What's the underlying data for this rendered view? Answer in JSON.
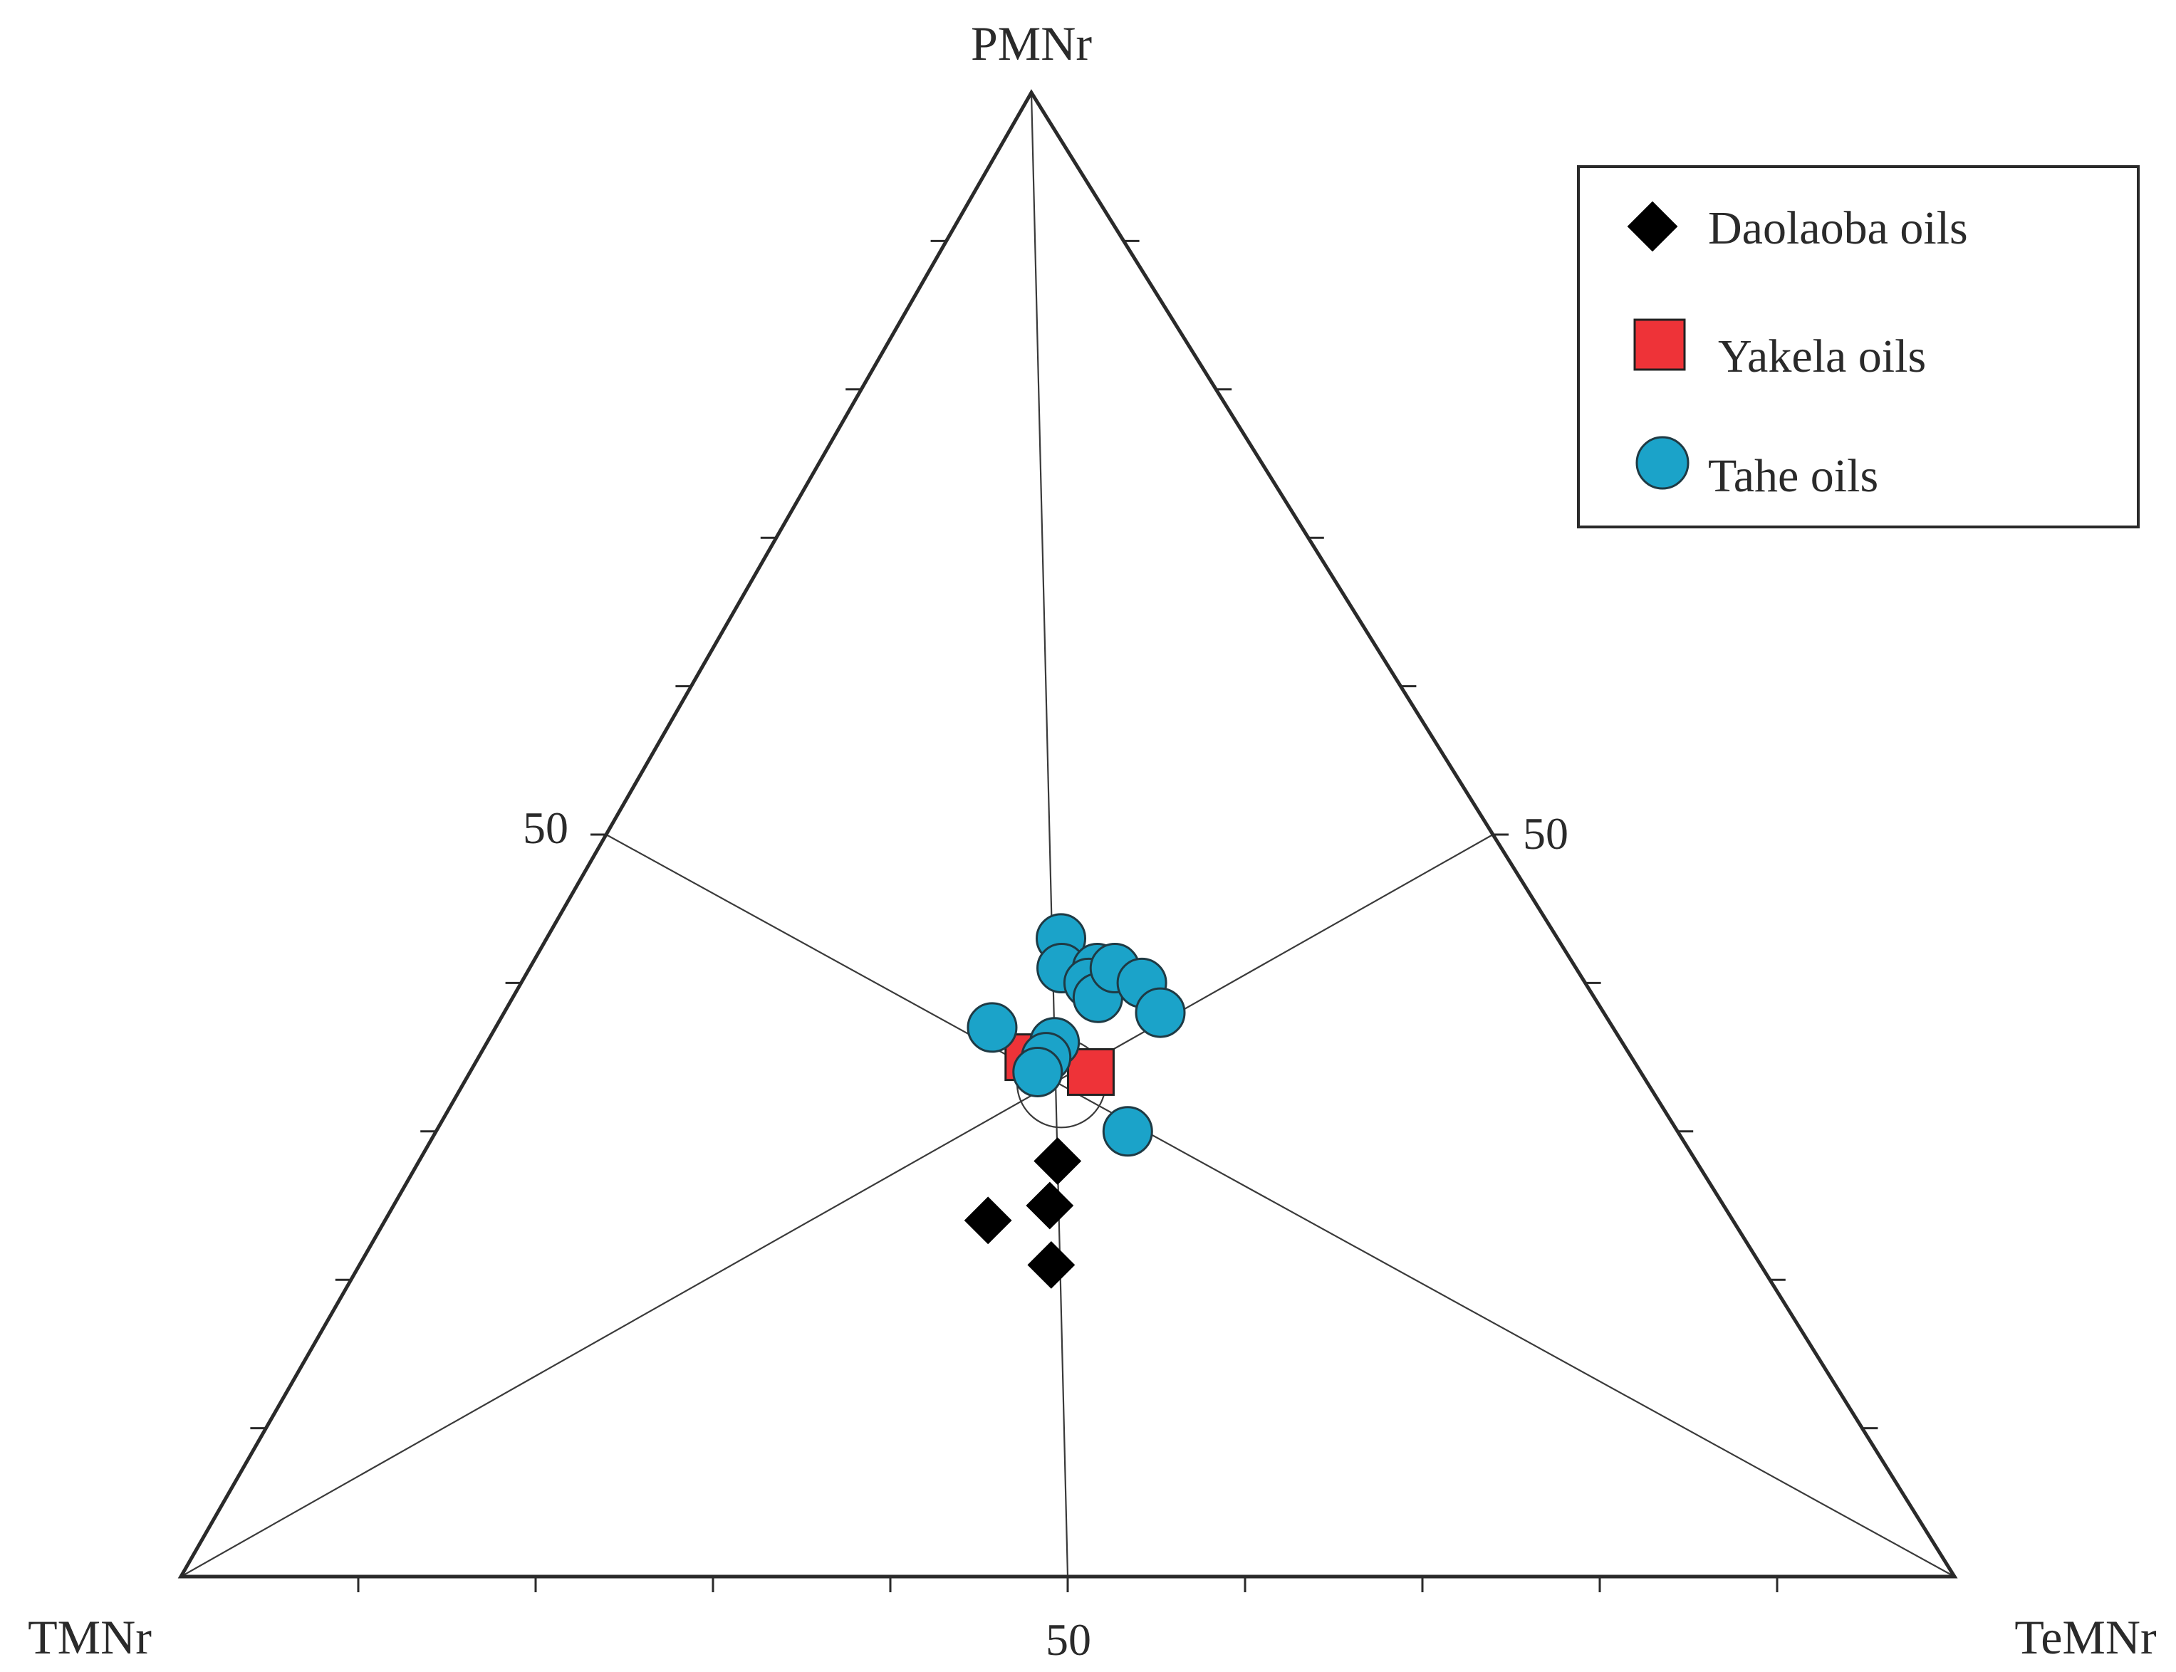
{
  "chart_data": {
    "type": "scatter",
    "subtype": "ternary",
    "axes": {
      "top": "PMNr",
      "left": "TMNr",
      "right": "TeMNr"
    },
    "tick_labels": {
      "left_edge": "50",
      "right_edge": "50",
      "bottom_edge": "50"
    },
    "grid": false,
    "median_lines": true,
    "ticks_per_edge": 10,
    "legend_position": "top-right",
    "series": [
      {
        "name": "Daolaoba oils",
        "marker": "diamond",
        "color": "#000000",
        "points": [
          {
            "PMNr": 28,
            "TMNr": 36,
            "TeMNr": 36
          },
          {
            "PMNr": 25,
            "TMNr": 38,
            "TeMNr": 37
          },
          {
            "PMNr": 24,
            "TMNr": 42,
            "TeMNr": 34
          },
          {
            "PMNr": 21,
            "TMNr": 40,
            "TeMNr": 39
          }
        ]
      },
      {
        "name": "Yakela oils",
        "marker": "square",
        "color": "#ee3338",
        "points": [
          {
            "PMNr": 35,
            "TMNr": 34,
            "TeMNr": 31
          },
          {
            "PMNr": 34,
            "TMNr": 31,
            "TeMNr": 35
          }
        ]
      },
      {
        "name": "Tahe oils",
        "marker": "circle",
        "color": "#1ba3c9",
        "points": [
          {
            "PMNr": 43,
            "TMNr": 28,
            "TeMNr": 29
          },
          {
            "PMNr": 41,
            "TMNr": 29,
            "TeMNr": 30
          },
          {
            "PMNr": 41,
            "TMNr": 27,
            "TeMNr": 32
          },
          {
            "PMNr": 40,
            "TMNr": 28,
            "TeMNr": 32
          },
          {
            "PMNr": 39,
            "TMNr": 28,
            "TeMNr": 33
          },
          {
            "PMNr": 41,
            "TMNr": 26,
            "TeMNr": 33
          },
          {
            "PMNr": 40,
            "TMNr": 25,
            "TeMNr": 35
          },
          {
            "PMNr": 38,
            "TMNr": 25,
            "TeMNr": 37
          },
          {
            "PMNr": 37,
            "TMNr": 35,
            "TeMNr": 28
          },
          {
            "PMNr": 36,
            "TMNr": 32,
            "TeMNr": 32
          },
          {
            "PMNr": 35,
            "TMNr": 33,
            "TeMNr": 32
          },
          {
            "PMNr": 34,
            "TMNr": 34,
            "TeMNr": 32
          },
          {
            "PMNr": 30,
            "TMNr": 31,
            "TeMNr": 39
          }
        ]
      }
    ]
  },
  "colors": {
    "frame": "#2a2a2a",
    "median_line": "#3a3a3a",
    "daolaoba": "#000000",
    "yakela": "#ee3338",
    "tahe": "#1ba3c9"
  }
}
